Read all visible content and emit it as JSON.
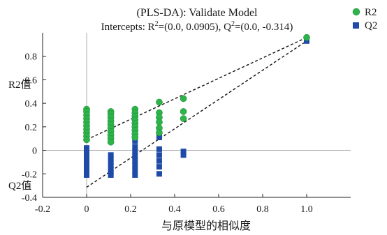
{
  "chart_data": {
    "type": "scatter",
    "title": "(PLS-DA): Validate Model",
    "subtitle_prefix": "Intercepts: R",
    "subtitle_mid": "=(0.0, 0.0905), Q",
    "subtitle_suffix": "=(0.0, -0.314)",
    "subtitle_sup": "2",
    "xlabel": "与原模型的相似度",
    "ylabel_r2": "R2值",
    "ylabel_q2": "Q2值",
    "xlim": [
      -0.2,
      1.2
    ],
    "ylim": [
      -0.4,
      1.0
    ],
    "x_ticks": [
      -0.2,
      0,
      0.2,
      0.4,
      0.6,
      0.8,
      1.0
    ],
    "x_tick_labels": [
      "-0.2",
      "0",
      "0.2",
      "0.4",
      "0.6",
      "0.8",
      "1.0"
    ],
    "y_ticks": [
      -0.4,
      -0.2,
      0,
      0.2,
      0.4,
      0.6,
      0.8
    ],
    "y_tick_labels": [
      "-0.4",
      "-0.2",
      "0",
      "0.2",
      "0.4",
      "0.6",
      "0.8"
    ],
    "legend_position": "top-right",
    "series": [
      {
        "name": "R2",
        "marker": "circle",
        "color": "#2db34a",
        "points": [
          [
            0.0,
            0.35
          ],
          [
            0.0,
            0.33
          ],
          [
            0.0,
            0.3
          ],
          [
            0.0,
            0.27
          ],
          [
            0.0,
            0.24
          ],
          [
            0.0,
            0.21
          ],
          [
            0.0,
            0.18
          ],
          [
            0.0,
            0.15
          ],
          [
            0.0,
            0.12
          ],
          [
            0.0,
            0.09
          ],
          [
            0.11,
            0.33
          ],
          [
            0.11,
            0.31
          ],
          [
            0.11,
            0.28
          ],
          [
            0.11,
            0.25
          ],
          [
            0.11,
            0.22
          ],
          [
            0.11,
            0.19
          ],
          [
            0.11,
            0.16
          ],
          [
            0.11,
            0.13
          ],
          [
            0.11,
            0.1
          ],
          [
            0.11,
            0.07
          ],
          [
            0.22,
            0.35
          ],
          [
            0.22,
            0.32
          ],
          [
            0.22,
            0.29
          ],
          [
            0.22,
            0.26
          ],
          [
            0.22,
            0.23
          ],
          [
            0.22,
            0.2
          ],
          [
            0.22,
            0.17
          ],
          [
            0.22,
            0.14
          ],
          [
            0.22,
            0.11
          ],
          [
            0.33,
            0.41
          ],
          [
            0.33,
            0.32
          ],
          [
            0.33,
            0.28
          ],
          [
            0.33,
            0.24
          ],
          [
            0.33,
            0.19
          ],
          [
            0.33,
            0.15
          ],
          [
            0.44,
            0.44
          ],
          [
            0.44,
            0.33
          ],
          [
            0.44,
            0.27
          ],
          [
            1.0,
            0.96
          ]
        ]
      },
      {
        "name": "Q2",
        "marker": "square",
        "color": "#1f4aa8",
        "points": [
          [
            0.0,
            0.02
          ],
          [
            0.0,
            -0.01
          ],
          [
            0.0,
            -0.04
          ],
          [
            0.0,
            -0.07
          ],
          [
            0.0,
            -0.1
          ],
          [
            0.0,
            -0.13
          ],
          [
            0.0,
            -0.16
          ],
          [
            0.0,
            -0.19
          ],
          [
            0.0,
            -0.21
          ],
          [
            0.11,
            -0.04
          ],
          [
            0.11,
            -0.07
          ],
          [
            0.11,
            -0.1
          ],
          [
            0.11,
            -0.13
          ],
          [
            0.11,
            -0.16
          ],
          [
            0.11,
            -0.19
          ],
          [
            0.11,
            -0.21
          ],
          [
            0.22,
            0.08
          ],
          [
            0.22,
            0.03
          ],
          [
            0.22,
            -0.01
          ],
          [
            0.22,
            -0.05
          ],
          [
            0.22,
            -0.09
          ],
          [
            0.22,
            -0.13
          ],
          [
            0.22,
            -0.17
          ],
          [
            0.22,
            -0.21
          ],
          [
            0.33,
            0.11
          ],
          [
            0.33,
            0.01
          ],
          [
            0.33,
            -0.04
          ],
          [
            0.33,
            -0.09
          ],
          [
            0.33,
            -0.14
          ],
          [
            0.33,
            -0.2
          ],
          [
            0.44,
            -0.01
          ],
          [
            0.44,
            -0.04
          ],
          [
            1.0,
            0.93
          ]
        ]
      }
    ],
    "fit_lines": [
      {
        "series": "R2",
        "from": [
          0.0,
          0.0905
        ],
        "to": [
          1.0,
          0.96
        ]
      },
      {
        "series": "Q2",
        "from": [
          0.0,
          -0.314
        ],
        "to": [
          1.0,
          0.93
        ]
      }
    ]
  }
}
